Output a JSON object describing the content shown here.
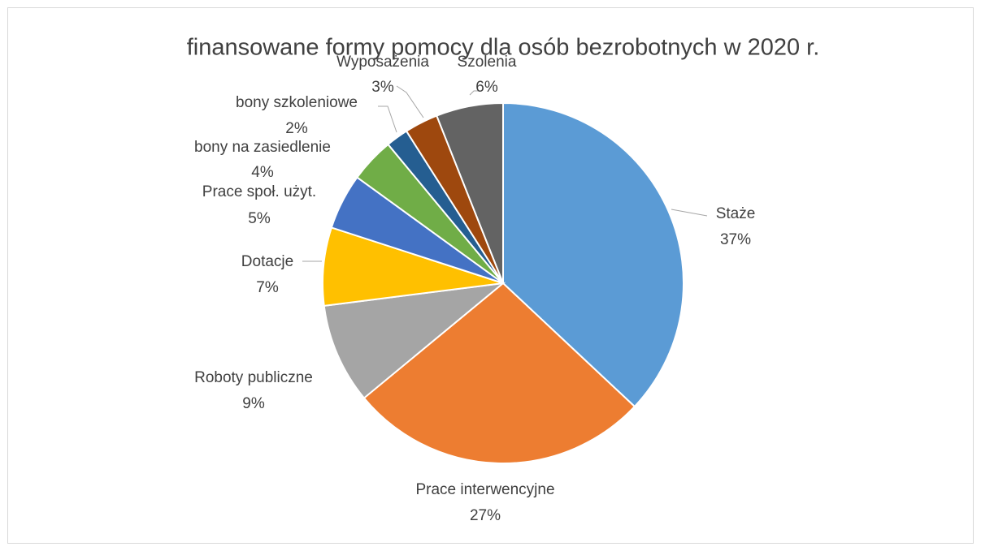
{
  "chart_data": {
    "type": "pie",
    "title": "finansowane formy pomocy dla osób bezrobotnych w 2020 r.",
    "categories": [
      "Staże",
      "Prace interwencyjne",
      "Roboty publiczne",
      "Dotacje",
      "Prace społ. użyt.",
      "bony na zasiedlenie",
      "bony szkoleniowe",
      "Wyposażenia",
      "Szolenia"
    ],
    "values": [
      37,
      27,
      9,
      7,
      5,
      4,
      2,
      3,
      6
    ],
    "value_labels": [
      "37%",
      "27%",
      "9%",
      "7%",
      "5%",
      "4%",
      "2%",
      "3%",
      "6%"
    ],
    "colors": [
      "#5b9bd5",
      "#ed7d31",
      "#a5a5a5",
      "#ffc000",
      "#4472c4",
      "#70ad47",
      "#255e91",
      "#9e480e",
      "#636363"
    ]
  }
}
